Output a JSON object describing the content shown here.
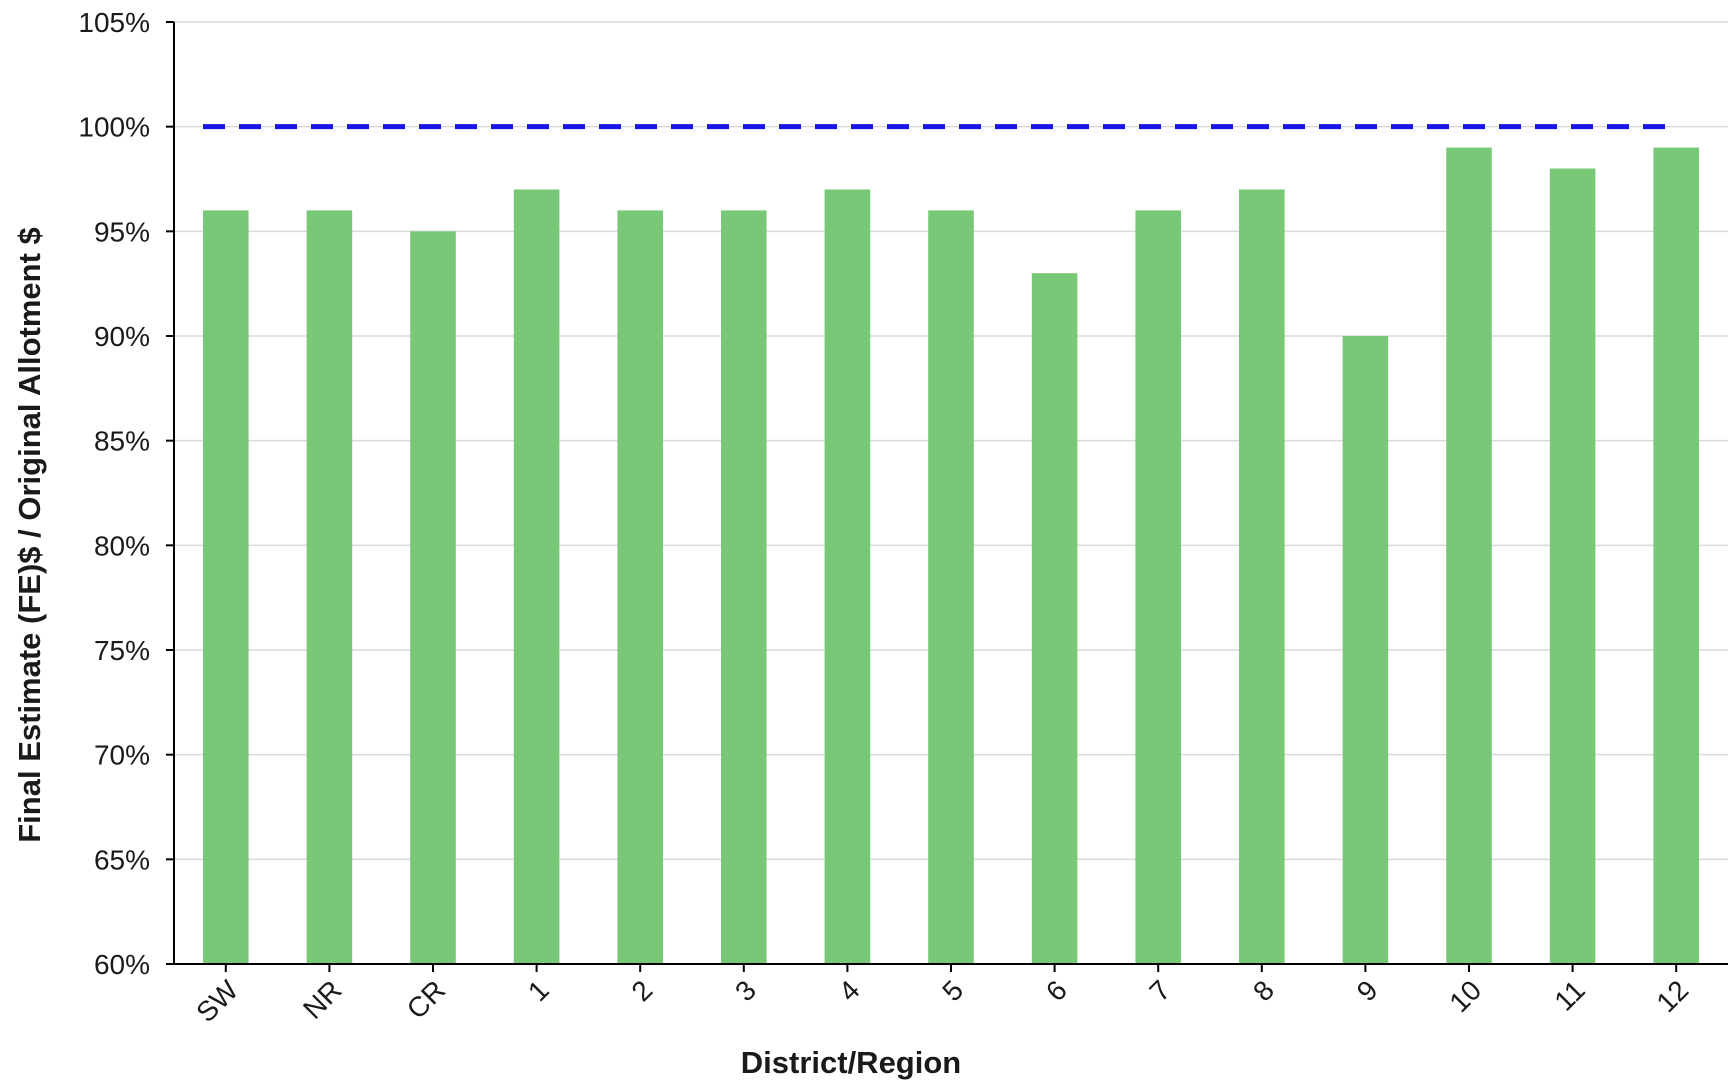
{
  "chart_data": {
    "type": "bar",
    "categories": [
      "SW",
      "NR",
      "CR",
      "1",
      "2",
      "3",
      "4",
      "5",
      "6",
      "7",
      "8",
      "9",
      "10",
      "11",
      "12"
    ],
    "values": [
      96,
      96,
      95,
      97,
      96,
      96,
      97,
      96,
      93,
      96,
      97,
      90,
      99,
      98,
      99
    ],
    "title": "",
    "xlabel": "District/Region",
    "ylabel": "Final Estimate (FE)$ / Original Allotment $",
    "ylim": [
      60,
      105
    ],
    "ytick_step": 5,
    "ytick_suffix": "%",
    "y_ticks": [
      "60%",
      "65%",
      "70%",
      "75%",
      "80%",
      "85%",
      "90%",
      "95%",
      "100%",
      "105%"
    ],
    "reference_line": {
      "value": 100,
      "style": "dashed",
      "color": "#1414e6"
    },
    "grid": true,
    "legend": "none",
    "bar_color": "#78c878"
  }
}
